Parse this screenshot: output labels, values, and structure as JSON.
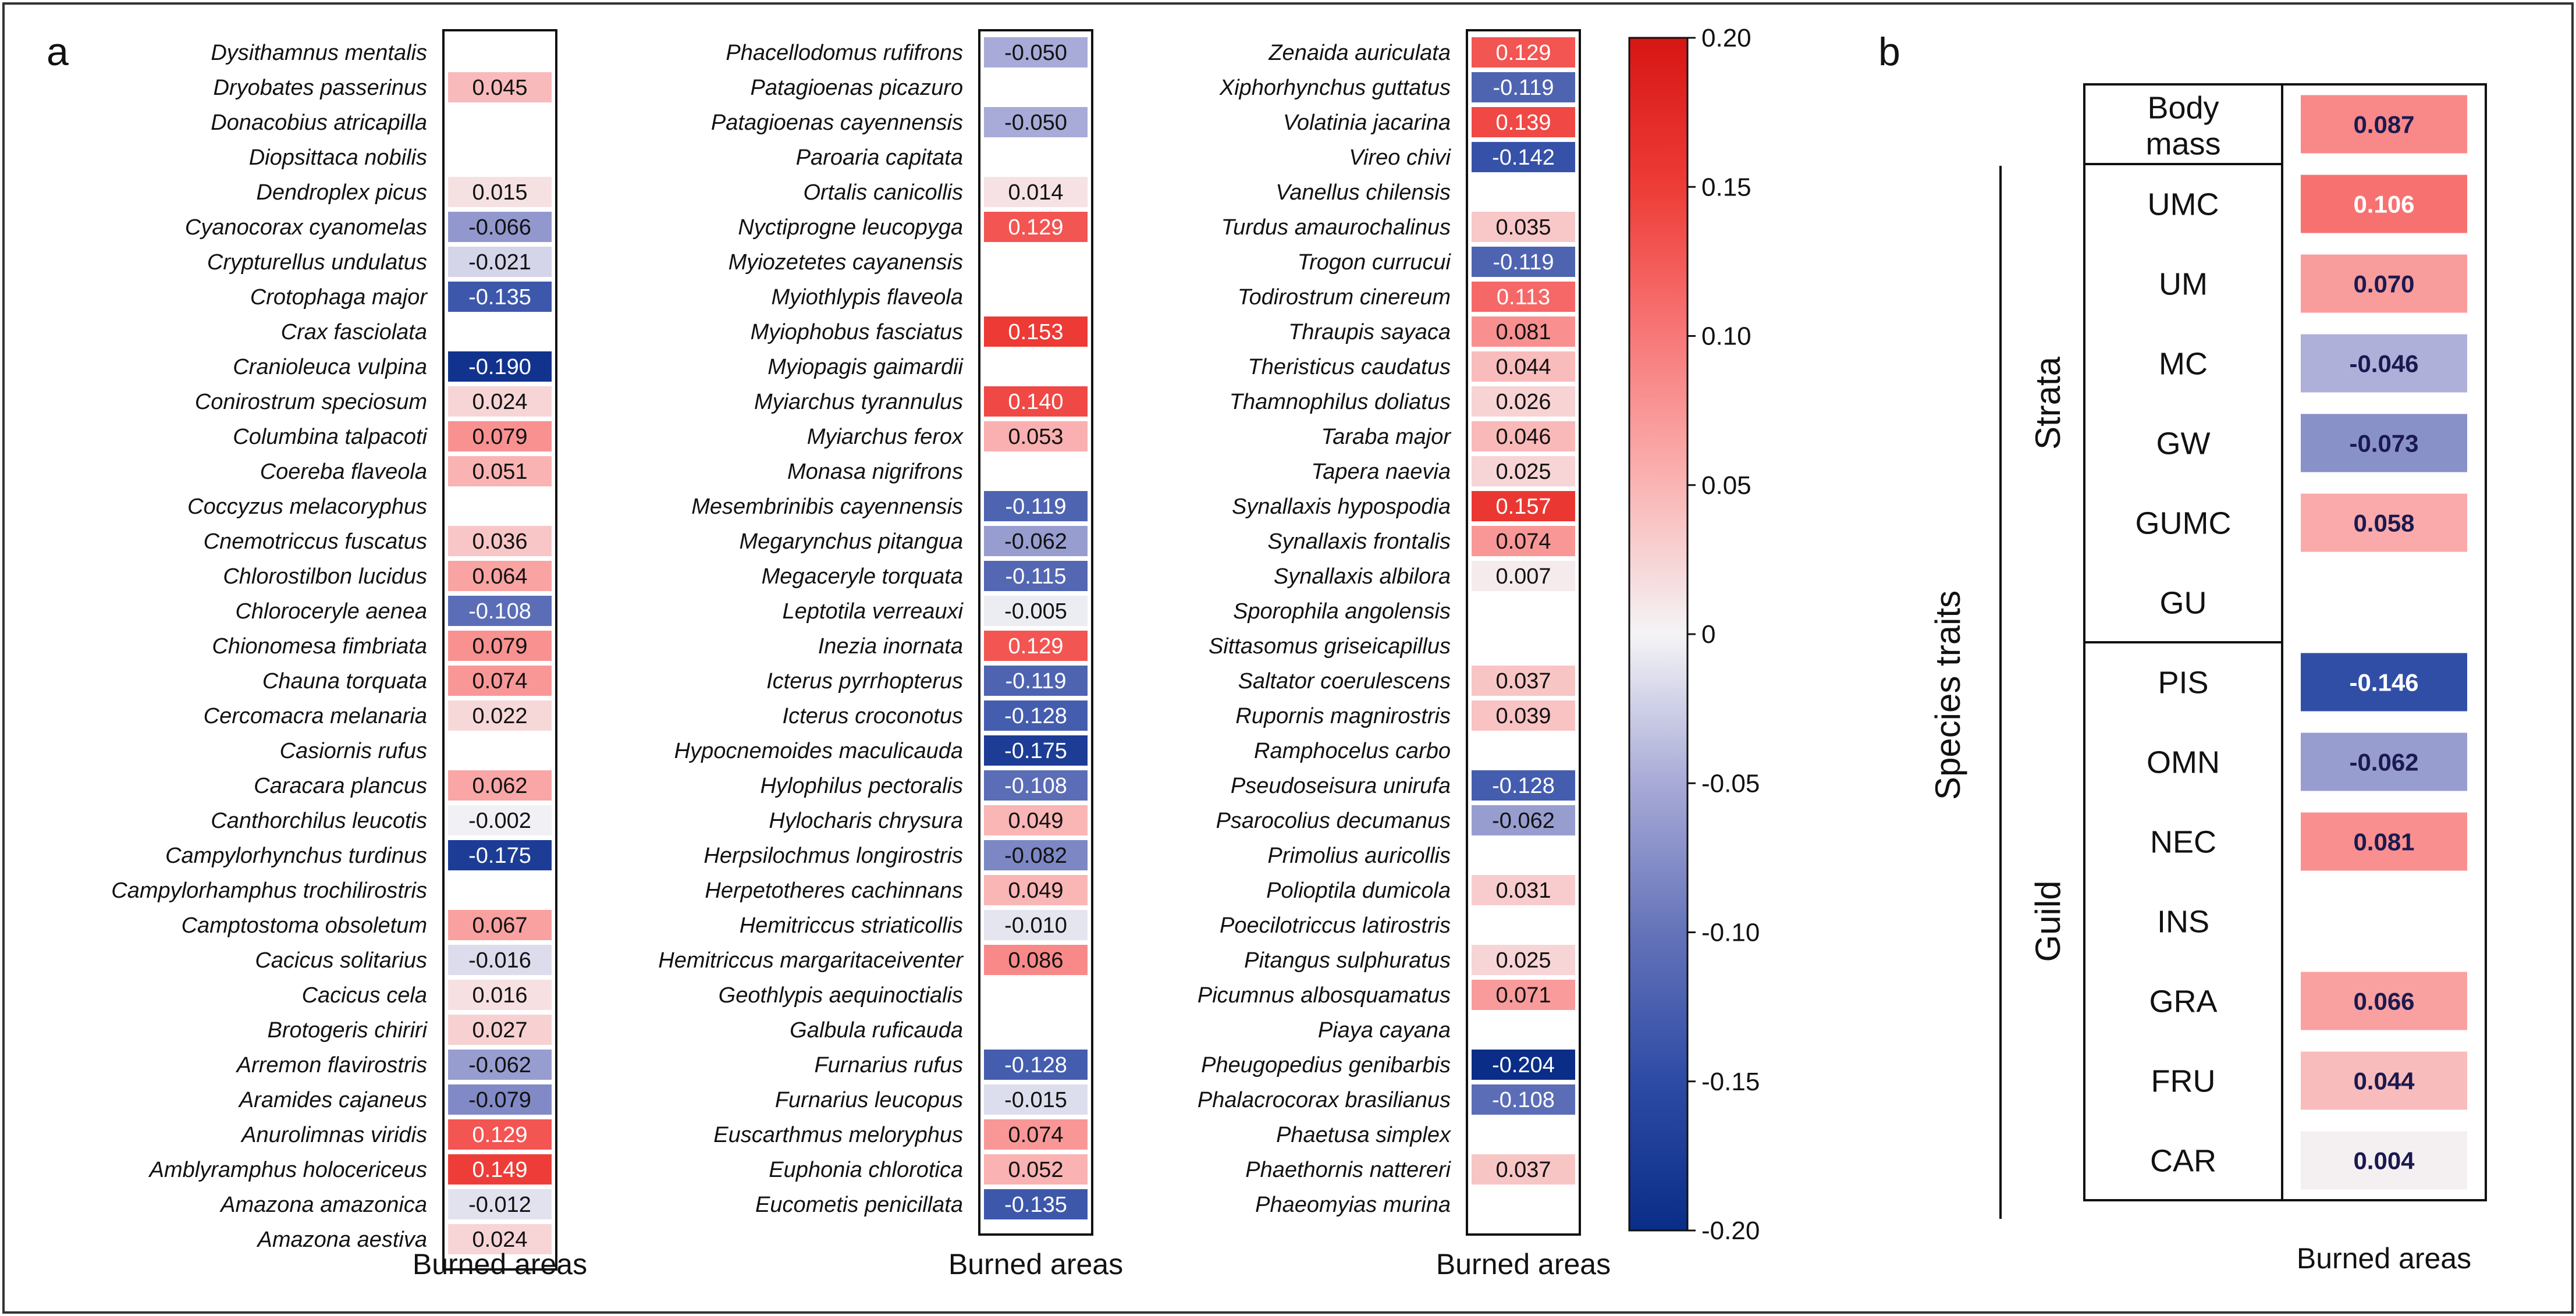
{
  "panel_labels": {
    "a": "a",
    "b": "b"
  },
  "chart_data": [
    {
      "type": "heatmap",
      "panel": "a",
      "xlabel": "Burned areas",
      "colorbar": {
        "min": -0.2,
        "max": 0.2,
        "ticks": [
          "0.20",
          "0.15",
          "0.10",
          "0.05",
          "0",
          "-0.05",
          "-0.10",
          "-0.15",
          "-0.20"
        ],
        "tick_values": [
          0.2,
          0.15,
          0.1,
          0.05,
          0,
          -0.05,
          -0.1,
          -0.15,
          -0.2
        ]
      },
      "columns": [
        [
          {
            "species": "Dysithamnus mentalis",
            "value": null,
            "label": ""
          },
          {
            "species": "Dryobates passerinus",
            "value": 0.045,
            "label": "0.045"
          },
          {
            "species": "Donacobius atricapilla",
            "value": null,
            "label": ""
          },
          {
            "species": "Diopsittaca nobilis",
            "value": null,
            "label": ""
          },
          {
            "species": "Dendroplex picus",
            "value": 0.015,
            "label": "0.015"
          },
          {
            "species": "Cyanocorax cyanomelas",
            "value": -0.066,
            "label": "-0.066"
          },
          {
            "species": "Crypturellus undulatus",
            "value": -0.021,
            "label": "-0.021"
          },
          {
            "species": "Crotophaga major",
            "value": -0.135,
            "label": "-0.135"
          },
          {
            "species": "Crax fasciolata",
            "value": null,
            "label": ""
          },
          {
            "species": "Cranioleuca vulpina",
            "value": -0.19,
            "label": "-0.190"
          },
          {
            "species": "Conirostrum speciosum",
            "value": 0.024,
            "label": "0.024"
          },
          {
            "species": "Columbina talpacoti",
            "value": 0.079,
            "label": "0.079"
          },
          {
            "species": "Coereba flaveola",
            "value": 0.051,
            "label": "0.051"
          },
          {
            "species": "Coccyzus melacoryphus",
            "value": null,
            "label": ""
          },
          {
            "species": "Cnemotriccus fuscatus",
            "value": 0.036,
            "label": "0.036"
          },
          {
            "species": "Chlorostilbon lucidus",
            "value": 0.064,
            "label": "0.064"
          },
          {
            "species": "Chloroceryle aenea",
            "value": -0.108,
            "label": "-0.108"
          },
          {
            "species": "Chionomesa fimbriata",
            "value": 0.079,
            "label": "0.079"
          },
          {
            "species": "Chauna torquata",
            "value": 0.074,
            "label": "0.074"
          },
          {
            "species": "Cercomacra melanaria",
            "value": 0.022,
            "label": "0.022"
          },
          {
            "species": "Casiornis rufus",
            "value": null,
            "label": ""
          },
          {
            "species": "Caracara plancus",
            "value": 0.062,
            "label": "0.062"
          },
          {
            "species": "Canthorchilus leucotis",
            "value": -0.002,
            "label": "-0.002"
          },
          {
            "species": "Campylorhynchus turdinus",
            "value": -0.175,
            "label": "-0.175"
          },
          {
            "species": "Campylorhamphus trochilirostris",
            "value": null,
            "label": ""
          },
          {
            "species": "Camptostoma obsoletum",
            "value": 0.067,
            "label": "0.067"
          },
          {
            "species": "Cacicus solitarius",
            "value": -0.016,
            "label": "-0.016"
          },
          {
            "species": "Cacicus cela",
            "value": 0.016,
            "label": "0.016"
          },
          {
            "species": "Brotogeris chiriri",
            "value": 0.027,
            "label": "0.027"
          },
          {
            "species": "Arremon flavirostris",
            "value": -0.062,
            "label": "-0.062"
          },
          {
            "species": "Aramides cajaneus",
            "value": -0.079,
            "label": "-0.079"
          },
          {
            "species": "Anurolimnas viridis",
            "value": 0.129,
            "label": "0.129"
          },
          {
            "species": "Amblyramphus holocericeus",
            "value": 0.149,
            "label": "0.149"
          },
          {
            "species": "Amazona amazonica",
            "value": -0.012,
            "label": "-0.012"
          },
          {
            "species": "Amazona aestiva",
            "value": 0.024,
            "label": "0.024"
          }
        ],
        [
          {
            "species": "Phacellodomus rufifrons",
            "value": -0.05,
            "label": "-0.050"
          },
          {
            "species": "Patagioenas picazuro",
            "value": null,
            "label": ""
          },
          {
            "species": "Patagioenas cayennensis",
            "value": -0.05,
            "label": "-0.050"
          },
          {
            "species": "Paroaria capitata",
            "value": null,
            "label": ""
          },
          {
            "species": "Ortalis canicollis",
            "value": 0.014,
            "label": "0.014"
          },
          {
            "species": "Nyctiprogne leucopyga",
            "value": 0.129,
            "label": "0.129"
          },
          {
            "species": "Myiozetetes cayanensis",
            "value": null,
            "label": ""
          },
          {
            "species": "Myiothlypis flaveola",
            "value": null,
            "label": ""
          },
          {
            "species": "Myiophobus fasciatus",
            "value": 0.153,
            "label": "0.153"
          },
          {
            "species": "Myiopagis gaimardii",
            "value": null,
            "label": ""
          },
          {
            "species": "Myiarchus tyrannulus",
            "value": 0.14,
            "label": "0.140"
          },
          {
            "species": "Myiarchus ferox",
            "value": 0.053,
            "label": "0.053"
          },
          {
            "species": "Monasa nigrifrons",
            "value": null,
            "label": ""
          },
          {
            "species": "Mesembrinibis cayennensis",
            "value": -0.119,
            "label": "-0.119"
          },
          {
            "species": "Megarynchus pitangua",
            "value": -0.062,
            "label": "-0.062"
          },
          {
            "species": "Megaceryle torquata",
            "value": -0.115,
            "label": "-0.115"
          },
          {
            "species": "Leptotila verreauxi",
            "value": -0.005,
            "label": "-0.005"
          },
          {
            "species": "Inezia inornata",
            "value": 0.129,
            "label": "0.129"
          },
          {
            "species": "Icterus pyrrhopterus",
            "value": -0.119,
            "label": "-0.119"
          },
          {
            "species": "Icterus croconotus",
            "value": -0.128,
            "label": "-0.128"
          },
          {
            "species": "Hypocnemoides maculicauda",
            "value": -0.175,
            "label": "-0.175"
          },
          {
            "species": "Hylophilus pectoralis",
            "value": -0.108,
            "label": "-0.108"
          },
          {
            "species": "Hylocharis chrysura",
            "value": 0.049,
            "label": "0.049"
          },
          {
            "species": "Herpsilochmus longirostris",
            "value": -0.082,
            "label": "-0.082"
          },
          {
            "species": "Herpetotheres cachinnans",
            "value": 0.049,
            "label": "0.049"
          },
          {
            "species": "Hemitriccus striaticollis",
            "value": -0.01,
            "label": "-0.010"
          },
          {
            "species": "Hemitriccus margaritaceiventer",
            "value": 0.086,
            "label": "0.086"
          },
          {
            "species": "Geothlypis aequinoctialis",
            "value": null,
            "label": ""
          },
          {
            "species": "Galbula ruficauda",
            "value": null,
            "label": ""
          },
          {
            "species": "Furnarius rufus",
            "value": -0.128,
            "label": "-0.128"
          },
          {
            "species": "Furnarius leucopus",
            "value": -0.015,
            "label": "-0.015"
          },
          {
            "species": "Euscarthmus meloryphus",
            "value": 0.074,
            "label": "0.074"
          },
          {
            "species": "Euphonia chlorotica",
            "value": 0.052,
            "label": "0.052"
          },
          {
            "species": "Eucometis penicillata",
            "value": -0.135,
            "label": "-0.135"
          }
        ],
        [
          {
            "species": "Zenaida auriculata",
            "value": 0.129,
            "label": "0.129"
          },
          {
            "species": "Xiphorhynchus guttatus",
            "value": -0.119,
            "label": "-0.119"
          },
          {
            "species": "Volatinia jacarina",
            "value": 0.139,
            "label": "0.139"
          },
          {
            "species": "Vireo chivi",
            "value": -0.142,
            "label": "-0.142"
          },
          {
            "species": "Vanellus chilensis",
            "value": null,
            "label": ""
          },
          {
            "species": "Turdus amaurochalinus",
            "value": 0.035,
            "label": "0.035"
          },
          {
            "species": "Trogon currucui",
            "value": -0.119,
            "label": "-0.119"
          },
          {
            "species": "Todirostrum cinereum",
            "value": 0.113,
            "label": "0.113"
          },
          {
            "species": "Thraupis sayaca",
            "value": 0.081,
            "label": "0.081"
          },
          {
            "species": "Theristicus caudatus",
            "value": 0.044,
            "label": "0.044"
          },
          {
            "species": "Thamnophilus doliatus",
            "value": 0.026,
            "label": "0.026"
          },
          {
            "species": "Taraba major",
            "value": 0.046,
            "label": "0.046"
          },
          {
            "species": "Tapera naevia",
            "value": 0.025,
            "label": "0.025"
          },
          {
            "species": "Synallaxis hypospodia",
            "value": 0.157,
            "label": "0.157"
          },
          {
            "species": "Synallaxis frontalis",
            "value": 0.074,
            "label": "0.074"
          },
          {
            "species": "Synallaxis albilora",
            "value": 0.007,
            "label": "0.007"
          },
          {
            "species": "Sporophila angolensis",
            "value": null,
            "label": ""
          },
          {
            "species": "Sittasomus griseicapillus",
            "value": null,
            "label": ""
          },
          {
            "species": "Saltator coerulescens",
            "value": 0.037,
            "label": "0.037"
          },
          {
            "species": "Rupornis magnirostris",
            "value": 0.039,
            "label": "0.039"
          },
          {
            "species": "Ramphocelus carbo",
            "value": null,
            "label": ""
          },
          {
            "species": "Pseudoseisura unirufa",
            "value": -0.128,
            "label": "-0.128"
          },
          {
            "species": "Psarocolius decumanus",
            "value": -0.062,
            "label": "-0.062"
          },
          {
            "species": "Primolius auricollis",
            "value": null,
            "label": ""
          },
          {
            "species": "Polioptila dumicola",
            "value": 0.031,
            "label": "0.031"
          },
          {
            "species": "Poecilotriccus latirostris",
            "value": null,
            "label": ""
          },
          {
            "species": "Pitangus sulphuratus",
            "value": 0.025,
            "label": "0.025"
          },
          {
            "species": "Picumnus albosquamatus",
            "value": 0.071,
            "label": "0.071"
          },
          {
            "species": "Piaya cayana",
            "value": null,
            "label": ""
          },
          {
            "species": "Pheugopedius genibarbis",
            "value": -0.204,
            "label": "-0.204"
          },
          {
            "species": "Phalacrocorax brasilianus",
            "value": -0.108,
            "label": "-0.108"
          },
          {
            "species": "Phaetusa simplex",
            "value": null,
            "label": ""
          },
          {
            "species": "Phaethornis nattereri",
            "value": 0.037,
            "label": "0.037"
          },
          {
            "species": "Phaeomyias murina",
            "value": null,
            "label": ""
          }
        ]
      ]
    },
    {
      "type": "heatmap",
      "panel": "b",
      "xlabel": "Burned areas",
      "ylabel": "Species traits",
      "groups": [
        {
          "name": "",
          "rows": [
            {
              "trait": "Body mass",
              "value": 0.087,
              "label": "0.087"
            }
          ]
        },
        {
          "name": "Strata",
          "rows": [
            {
              "trait": "UMC",
              "value": 0.106,
              "label": "0.106"
            },
            {
              "trait": "UM",
              "value": 0.07,
              "label": "0.070"
            },
            {
              "trait": "MC",
              "value": -0.046,
              "label": "-0.046"
            },
            {
              "trait": "GW",
              "value": -0.073,
              "label": "-0.073"
            },
            {
              "trait": "GUMC",
              "value": 0.058,
              "label": "0.058"
            },
            {
              "trait": "GU",
              "value": null,
              "label": ""
            }
          ]
        },
        {
          "name": "Guild",
          "rows": [
            {
              "trait": "PIS",
              "value": -0.146,
              "label": "-0.146"
            },
            {
              "trait": "OMN",
              "value": -0.062,
              "label": "-0.062"
            },
            {
              "trait": "NEC",
              "value": 0.081,
              "label": "0.081"
            },
            {
              "trait": "INS",
              "value": null,
              "label": ""
            },
            {
              "trait": "GRA",
              "value": 0.066,
              "label": "0.066"
            },
            {
              "trait": "FRU",
              "value": 0.044,
              "label": "0.044"
            },
            {
              "trait": "CAR",
              "value": 0.004,
              "label": "0.004"
            }
          ]
        }
      ]
    }
  ]
}
